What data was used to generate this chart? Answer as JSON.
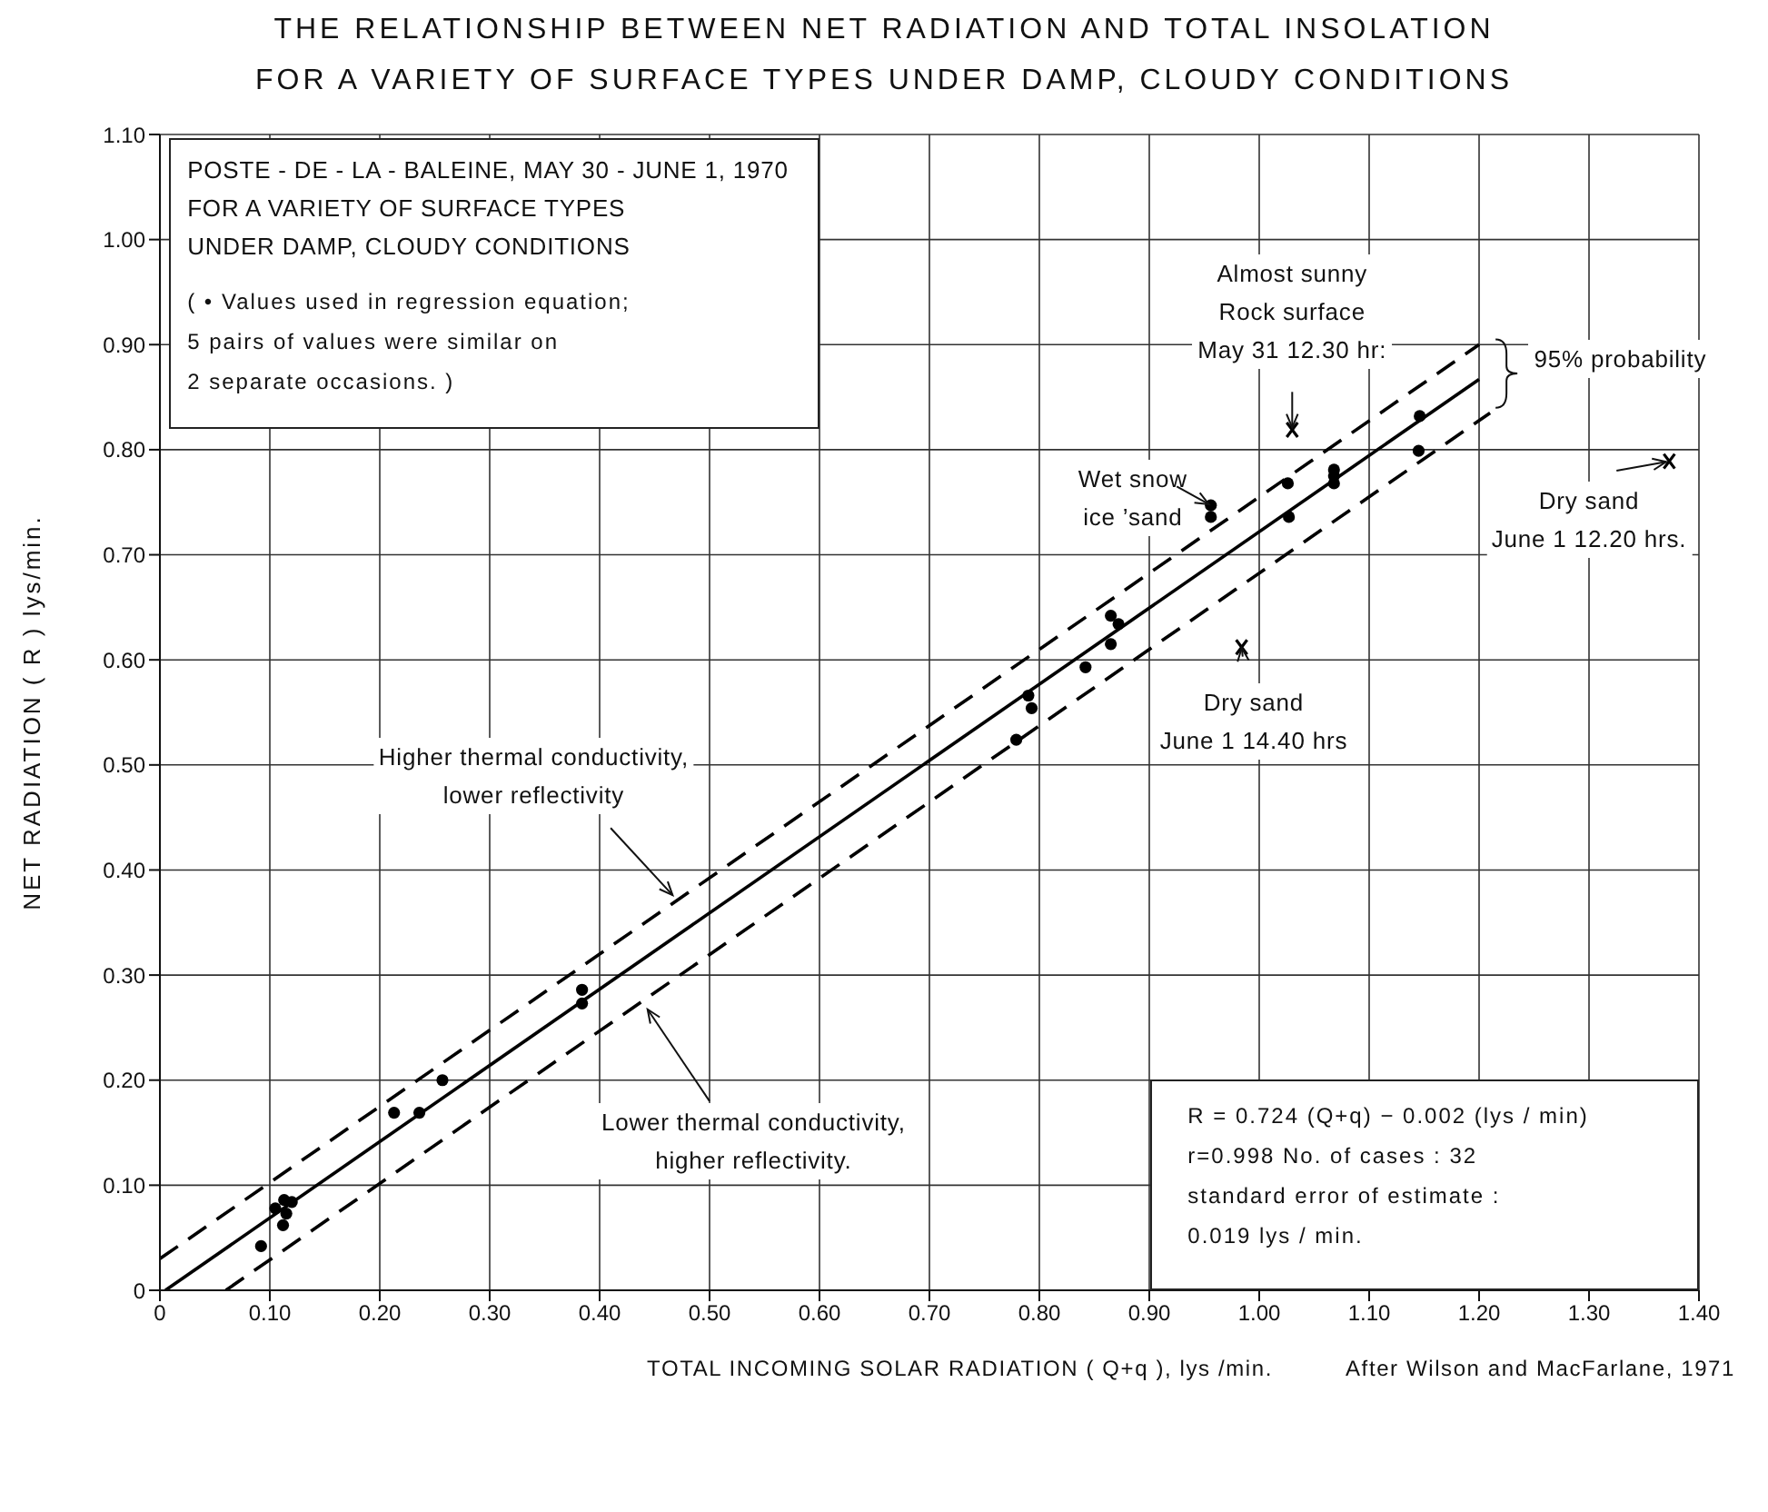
{
  "chart_data": {
    "type": "scatter",
    "title": "THE RELATIONSHIP BETWEEN NET RADIATION AND TOTAL INSOLATION",
    "subtitle": "FOR A VARIETY OF SURFACE TYPES UNDER DAMP, CLOUDY CONDITIONS",
    "xlabel": "TOTAL INCOMING SOLAR RADIATION ( Q+q ), lys /min.",
    "ylabel": "NET RADIATION ( R ) lys/min.",
    "xlim": [
      0,
      1.4
    ],
    "ylim": [
      0,
      1.1
    ],
    "xticks": [
      0,
      {
        "value": 0.1,
        "label": "0.10"
      },
      {
        "value": 0.2,
        "label": "0.20"
      },
      {
        "value": 0.3,
        "label": "0.30"
      },
      {
        "value": 0.4,
        "label": "0.40"
      },
      {
        "value": 0.5,
        "label": "0.50"
      },
      {
        "value": 0.6,
        "label": "0.60"
      },
      {
        "value": 0.7,
        "label": "0.70"
      },
      {
        "value": 0.8,
        "label": "0.80"
      },
      {
        "value": 0.9,
        "label": "0.90"
      },
      {
        "value": 1.0,
        "label": "1.00"
      },
      {
        "value": 1.1,
        "label": "1.10"
      },
      {
        "value": 1.2,
        "label": "1.20"
      },
      {
        "value": 1.3,
        "label": "1.30"
      },
      {
        "value": 1.4,
        "label": "1.40"
      }
    ],
    "yticks": [
      0,
      {
        "value": 0.1,
        "label": "0.10"
      },
      {
        "value": 0.2,
        "label": "0.20"
      },
      {
        "value": 0.3,
        "label": "0.30"
      },
      {
        "value": 0.4,
        "label": "0.40"
      },
      {
        "value": 0.5,
        "label": "0.50"
      },
      {
        "value": 0.6,
        "label": "0.60"
      },
      {
        "value": 0.7,
        "label": "0.70"
      },
      {
        "value": 0.8,
        "label": "0.80"
      },
      {
        "value": 0.9,
        "label": "0.90"
      },
      {
        "value": 1.0,
        "label": "1.00"
      },
      {
        "value": 1.1,
        "label": "1.10"
      }
    ],
    "grid": true,
    "series": [
      {
        "marker": "circle",
        "color": "#000000",
        "x": [
          0.092,
          0.105,
          0.113,
          0.12,
          0.115,
          0.112,
          0.213,
          0.236,
          0.257,
          0.384,
          0.384,
          0.779,
          0.79,
          0.793,
          0.842,
          0.865,
          0.872,
          0.865,
          0.956,
          0.956,
          1.026,
          1.027,
          1.068,
          1.068,
          1.068,
          1.146,
          1.145
        ],
        "values": [
          0.042,
          0.078,
          0.086,
          0.084,
          0.073,
          0.062,
          0.169,
          0.169,
          0.2,
          0.286,
          0.273,
          0.524,
          0.566,
          0.554,
          0.593,
          0.642,
          0.634,
          0.615,
          0.747,
          0.736,
          0.768,
          0.736,
          0.781,
          0.775,
          0.768,
          0.832,
          0.799
        ]
      },
      {
        "marker": "cross",
        "color": "#000000",
        "x": [
          1.03,
          0.984,
          1.373
        ],
        "values": [
          0.819,
          0.612,
          0.789
        ]
      },
      {
        "type": "line",
        "line_style": "solid",
        "color": "#000000",
        "x": [
          0.005,
          1.2
        ],
        "values": [
          0,
          0.867
        ]
      },
      {
        "type": "line",
        "line_style": "dashed",
        "color": "#000000",
        "x": [
          0,
          1.2
        ],
        "values": [
          0.03,
          0.9
        ]
      },
      {
        "type": "line",
        "line_style": "dashed",
        "color": "#000000",
        "x": [
          0.06,
          1.21
        ],
        "values": [
          0,
          0.835
        ]
      }
    ],
    "annotations": [
      "POSTE - DE - LA - BALEINE, MAY 30 - JUNE 1, 1970\nFOR A VARIETY OF SURFACE TYPES\nUNDER DAMP, CLOUDY CONDITIONS",
      "( • Values used in regression equation;\n5 pairs of values were similar on\n2 separate occasions. )",
      {
        "text": "Almost sunny\nRock surface\nMay 31 12.30 hr:",
        "x": 1.03,
        "y": 0.819
      },
      "95% probability",
      {
        "text": "Wet snow\nice ’sand",
        "x": 0.956,
        "y": 0.747
      },
      {
        "text": "Dry sand\nJune 1 12.20 hrs.",
        "x": 1.373,
        "y": 0.789
      },
      {
        "text": "Dry sand\nJune 1 14.40 hrs",
        "x": 0.984,
        "y": 0.612
      },
      {
        "text": "Higher thermal conductivity,\nlower reflectivity",
        "x": 0.47,
        "y": 0.372
      },
      {
        "text": "Lower thermal conductivity,\nhigher reflectivity.",
        "x": 0.44,
        "y": 0.273
      },
      "R = 0.724 (Q+q) − 0.002 (lys / min)\nr=0.998 No. of cases : 32\nstandard error of estimate :\n0.019 lys / min.",
      "After Wilson and MacFarlane, 1971"
    ]
  }
}
